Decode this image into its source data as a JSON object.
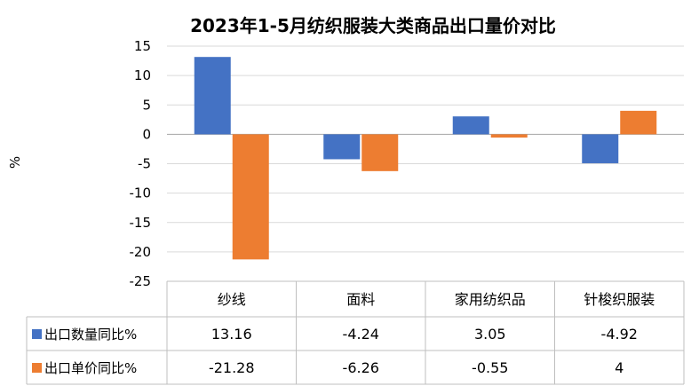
{
  "chart_data": {
    "type": "bar",
    "title": "2023年1-5月纺织服装大类商品出口量价对比",
    "ylabel": "%",
    "categories": [
      "纱线",
      "面料",
      "家用纺织品",
      "针梭织服装"
    ],
    "ylim": [
      -25,
      15
    ],
    "yticks": [
      "15",
      "10",
      "5",
      "0",
      "-5",
      "-10",
      "-15",
      "-20",
      "-25"
    ],
    "grid": true,
    "legend_position": "bottom-table",
    "series": [
      {
        "name": "出口数量同比%",
        "color": "#4472C4",
        "values": [
          13.16,
          -4.24,
          3.05,
          -4.92
        ],
        "labels": [
          "13.16",
          "-4.24",
          "3.05",
          "-4.92"
        ]
      },
      {
        "name": "出口单价同比%",
        "color": "#ED7D31",
        "values": [
          -21.28,
          -6.26,
          -0.55,
          4
        ],
        "labels": [
          "-21.28",
          "-6.26",
          "-0.55",
          "4"
        ]
      }
    ]
  }
}
